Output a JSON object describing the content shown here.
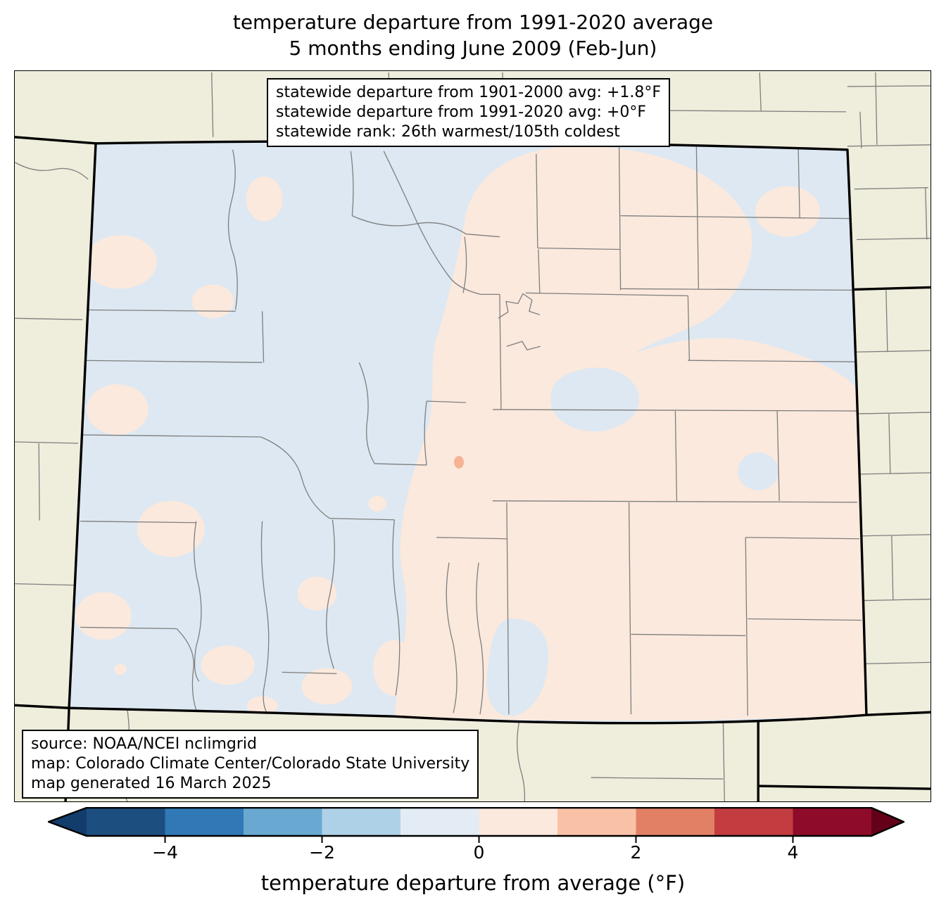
{
  "title": {
    "line1": "temperature departure from 1991-2020 average",
    "line2": "5 months ending June 2009 (Feb-Jun)"
  },
  "stats_box": {
    "lines": [
      "statewide departure from 1901-2000 avg: +1.8°F",
      "statewide departure from 1991-2020 avg: +0°F",
      "statewide rank: 26th warmest/105th coldest"
    ]
  },
  "source_box": {
    "lines": [
      "source: NOAA/NCEI nclimgrid",
      "map: Colorado Climate Center/Colorado State University",
      "map generated 16 March 2025"
    ]
  },
  "colorbar": {
    "label": "temperature departure from average (°F)",
    "range_min": -5,
    "range_max": 5,
    "ticks": [
      {
        "value": -4,
        "label": "−4"
      },
      {
        "value": -2,
        "label": "−2"
      },
      {
        "value": 0,
        "label": "0"
      },
      {
        "value": 2,
        "label": "2"
      },
      {
        "value": 4,
        "label": "4"
      }
    ],
    "segment_colors": [
      "#1c4e80",
      "#3079b6",
      "#69a9d1",
      "#afd1e7",
      "#e3ecf5",
      "#fbe9dd",
      "#f9c2a6",
      "#e28066",
      "#c33d40",
      "#8e0c29"
    ],
    "extend_left_color": "#123c6b",
    "extend_right_color": "#640119"
  },
  "map": {
    "region": "Colorado",
    "colors": {
      "background_outside": "#efeddc",
      "cool_fill": "#dde8f2",
      "warm_fill": "#fbe9dd",
      "warm_spot": "#f5b394",
      "county_line": "#7e7e7e",
      "state_line": "#000000"
    }
  },
  "chart_data": {
    "type": "heatmap",
    "title": "temperature departure from 1991-2020 average — 5 months ending June 2009 (Feb-Jun)",
    "colorbar_label": "temperature departure from average (°F)",
    "colorbar_ticks": [
      -4,
      -2,
      0,
      2,
      4
    ],
    "colorbar_range": [
      -5,
      5
    ],
    "statewide_departure_1901_2000": "+1.8°F",
    "statewide_departure_1991_2020": "+0°F",
    "statewide_rank": "26th warmest/105th coldest"
  }
}
